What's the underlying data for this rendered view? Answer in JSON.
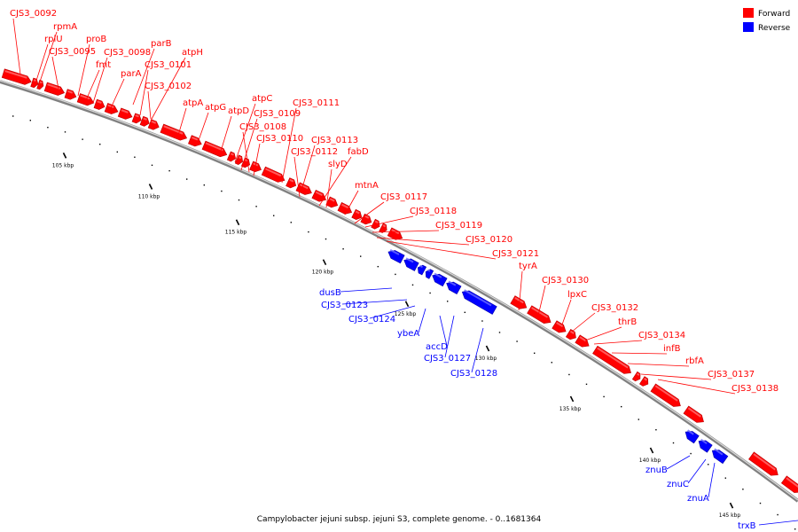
{
  "colors": {
    "forward": "#ff0000",
    "forward_dark": "#b80000",
    "forward_light": "#ff7070",
    "reverse": "#0000ff",
    "reverse_dark": "#0000a8",
    "reverse_light": "#6a6aff",
    "backbone": "#808080",
    "backbone_light": "#d8d8d8",
    "tick": "#000000"
  },
  "legend": {
    "forward_label": "Forward",
    "reverse_label": "Reverse"
  },
  "caption": "Campylobacter jejuni subsp. jejuni S3, complete genome. - 0..1681364",
  "ticks": [
    "105 kbp",
    "110 kbp",
    "115 kbp",
    "120 kbp",
    "125 kbp",
    "130 kbp",
    "135 kbp",
    "140 kbp",
    "145 kbp"
  ],
  "forward_labels": [
    "CJS3_0092",
    "rpmA",
    "rplU",
    "proB",
    "CJS3_0095",
    "parB",
    "CJS3_0098",
    "atpH",
    "fmt",
    "CJS3_0101",
    "parA",
    "CJS3_0102",
    "atpA",
    "atpG",
    "atpD",
    "atpC",
    "CJS3_0111",
    "CJS3_0109",
    "CJS3_0108",
    "CJS3_0110",
    "CJS3_0113",
    "CJS3_0112",
    "fabD",
    "slyD",
    "mtnA",
    "CJS3_0117",
    "CJS3_0118",
    "CJS3_0119",
    "CJS3_0120",
    "CJS3_0121",
    "tyrA",
    "CJS3_0130",
    "lpxC",
    "CJS3_0132",
    "thrB",
    "CJS3_0134",
    "infB",
    "rbfA",
    "CJS3_0137",
    "CJS3_0138"
  ],
  "reverse_labels": [
    "dusB",
    "CJS3_0123",
    "CJS3_0124",
    "ybeA",
    "accD",
    "CJS3_0127",
    "CJS3_0128",
    "znuB",
    "znuC",
    "znuA",
    "trxB"
  ]
}
